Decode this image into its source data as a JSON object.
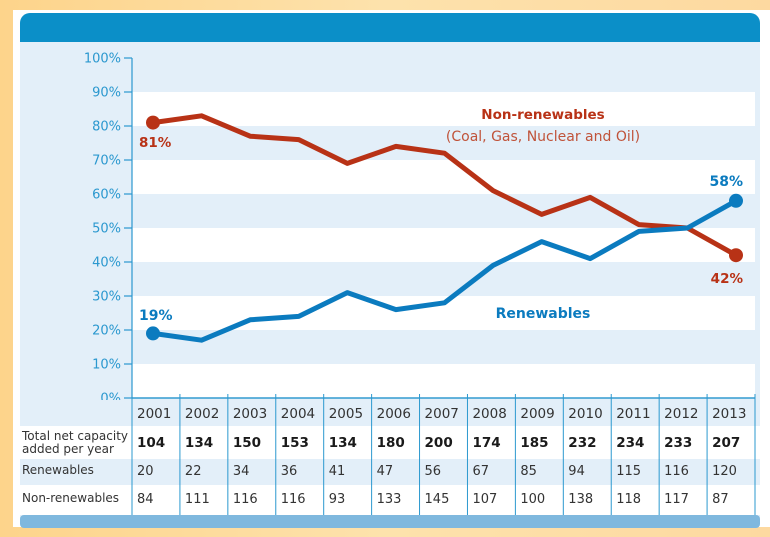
{
  "colors": {
    "nonrenewables": "#b83216",
    "renewables": "#0b7bbf",
    "header": "#0b8fc8",
    "band": "#e3eff9",
    "axis": "#2b98cf"
  },
  "chart_data": {
    "type": "line",
    "title": "",
    "xlabel": "",
    "ylabel": "",
    "ylim": [
      0,
      100
    ],
    "y_ticks": [
      "0%",
      "10%",
      "20%",
      "30%",
      "40%",
      "50%",
      "60%",
      "70%",
      "80%",
      "90%",
      "100%"
    ],
    "x": [
      "2001",
      "2002",
      "2003",
      "2004",
      "2005",
      "2006",
      "2007",
      "2008",
      "2009",
      "2010",
      "2011",
      "2012",
      "2013"
    ],
    "series": [
      {
        "name": "Non-renewables",
        "subtitle": "(Coal, Gas, Nuclear and Oil)",
        "values": [
          81,
          83,
          77,
          76,
          69,
          74,
          72,
          61,
          54,
          59,
          51,
          50,
          42
        ],
        "start_label": "81%",
        "end_label": "42%"
      },
      {
        "name": "Renewables",
        "values": [
          19,
          17,
          23,
          24,
          31,
          26,
          28,
          39,
          46,
          41,
          49,
          50,
          58
        ],
        "start_label": "19%",
        "end_label": "58%"
      }
    ],
    "grid": "alternating horizontal bands",
    "table": {
      "row_labels": [
        "Total net capacity added per year",
        "Renewables",
        "Non-renewables"
      ],
      "total_label_lines": [
        "Total net capacity",
        "added per year"
      ],
      "total": [
        "104",
        "134",
        "150",
        "153",
        "134",
        "180",
        "200",
        "174",
        "185",
        "232",
        "234",
        "233",
        "207"
      ],
      "renewables": [
        "20",
        "22",
        "34",
        "36",
        "41",
        "47",
        "56",
        "67",
        "85",
        "94",
        "115",
        "116",
        "120"
      ],
      "nonrenewables": [
        "84",
        "111",
        "116",
        "116",
        "93",
        "133",
        "145",
        "107",
        "100",
        "138",
        "118",
        "117",
        "87"
      ]
    }
  }
}
